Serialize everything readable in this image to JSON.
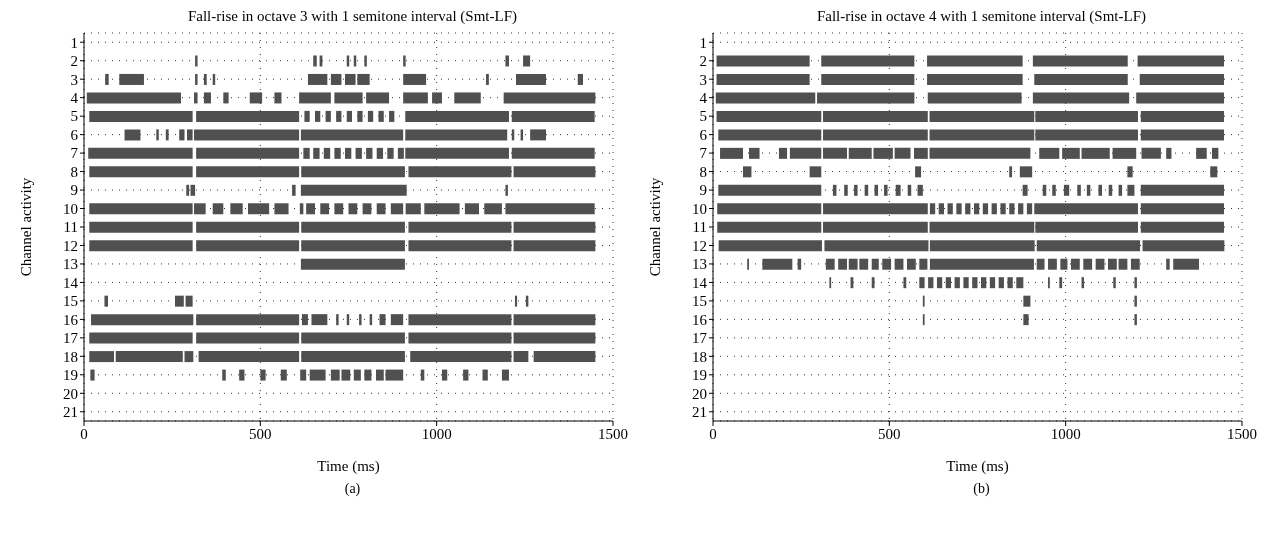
{
  "chart_data": [
    {
      "type": "bar",
      "orientation": "horizontal",
      "title": "Fall-rise in octave 3 with 1 semitone interval (Smt-LF)",
      "xlabel": "Time (ms)",
      "ylabel": "Channel activity",
      "annotations": [
        "(a)"
      ],
      "categories": [
        "1",
        "2",
        "3",
        "4",
        "5",
        "6",
        "7",
        "8",
        "9",
        "10",
        "11",
        "12",
        "13",
        "14",
        "15",
        "16",
        "17",
        "18",
        "19",
        "20",
        "21"
      ],
      "xlim": [
        0,
        1500
      ],
      "xticks": [
        0,
        500,
        1000,
        1500
      ],
      "grid": true,
      "color": "#505050",
      "series": [
        {
          "base": [
            null,
            315,
            60,
            8,
            15,
            115,
            12,
            15,
            290,
            15,
            15,
            15,
            615,
            null,
            58,
            20,
            15,
            15,
            18,
            null,
            null
          ],
          "values": [
            null,
            7,
            10,
            267,
            293,
            45,
            296,
            293,
            8,
            293,
            293,
            293,
            295,
            null,
            10,
            290,
            293,
            70,
            12,
            null,
            null
          ]
        },
        {
          "base": [
            null,
            650,
            100,
            312,
            318,
            205,
            318,
            318,
            302,
            312,
            318,
            318,
            null,
            null,
            258,
            318,
            318,
            90,
            392,
            null,
            null
          ],
          "values": [
            null,
            10,
            70,
            10,
            292,
            7,
            292,
            292,
            13,
            33,
            292,
            292,
            null,
            null,
            25,
            292,
            292,
            190,
            10,
            null,
            null
          ]
        },
        {
          "base": [
            null,
            668,
            315,
            340,
            625,
            232,
            622,
            616,
            590,
            365,
            616,
            616,
            null,
            null,
            288,
            618,
            616,
            285,
            440,
            null,
            null
          ],
          "values": [
            null,
            8,
            7,
            20,
            15,
            8,
            18,
            294,
            10,
            30,
            294,
            294,
            null,
            null,
            20,
            17,
            294,
            25,
            15,
            null,
            null
          ]
        },
        {
          "base": [
            null,
            745,
            340,
            395,
            655,
            270,
            650,
            920,
            615,
            415,
            920,
            920,
            null,
            null,
            1222,
            645,
            920,
            325,
            500,
            null,
            null
          ],
          "values": [
            null,
            7,
            8,
            15,
            15,
            15,
            18,
            292,
            300,
            35,
            292,
            292,
            null,
            null,
            6,
            45,
            292,
            285,
            15,
            null,
            null
          ]
        },
        {
          "base": [
            null,
            765,
            365,
            470,
            685,
            292,
            680,
            1218,
            1195,
            465,
            1218,
            1218,
            null,
            null,
            1253,
            715,
            1218,
            616,
            558,
            null,
            null
          ],
          "values": [
            null,
            7,
            7,
            35,
            15,
            16,
            18,
            232,
            7,
            60,
            232,
            232,
            null,
            null,
            7,
            7,
            232,
            294,
            17,
            null,
            null
          ]
        },
        {
          "base": [
            null,
            795,
            635,
            540,
            715,
            312,
            710,
            null,
            null,
            540,
            null,
            null,
            null,
            null,
            null,
            745,
            null,
            925,
            613,
            null,
            null
          ],
          "values": [
            null,
            7,
            55,
            20,
            15,
            298,
            18,
            null,
            null,
            40,
            null,
            null,
            null,
            null,
            null,
            7,
            null,
            287,
            17,
            null,
            null
          ]
        },
        {
          "base": [
            null,
            905,
            700,
            610,
            745,
            615,
            740,
            null,
            null,
            612,
            null,
            null,
            null,
            null,
            null,
            780,
            null,
            1218,
            640,
            null,
            null
          ],
          "values": [
            null,
            7,
            30,
            90,
            15,
            290,
            18,
            null,
            null,
            10,
            null,
            null,
            null,
            null,
            null,
            7,
            null,
            42,
            45,
            null,
            null
          ]
        },
        {
          "base": [
            null,
            1195,
            740,
            710,
            775,
            911,
            770,
            null,
            null,
            630,
            null,
            null,
            null,
            null,
            null,
            810,
            null,
            1275,
            700,
            null,
            null
          ],
          "values": [
            null,
            10,
            30,
            80,
            15,
            289,
            18,
            null,
            null,
            25,
            null,
            null,
            null,
            null,
            null,
            7,
            null,
            175,
            25,
            null,
            null
          ]
        },
        {
          "base": [
            null,
            1245,
            775,
            800,
            805,
            1213,
            800,
            null,
            null,
            670,
            null,
            null,
            null,
            null,
            null,
            838,
            null,
            null,
            730,
            null,
            null
          ],
          "values": [
            null,
            20,
            35,
            65,
            15,
            7,
            18,
            null,
            null,
            25,
            null,
            null,
            null,
            null,
            null,
            17,
            null,
            null,
            25,
            null,
            null
          ]
        },
        {
          "base": [
            null,
            null,
            905,
            905,
            835,
            1238,
            830,
            null,
            null,
            710,
            null,
            null,
            null,
            null,
            null,
            870,
            null,
            null,
            765,
            null,
            null
          ],
          "values": [
            null,
            null,
            65,
            70,
            15,
            7,
            18,
            null,
            null,
            25,
            null,
            null,
            null,
            null,
            null,
            35,
            null,
            null,
            20,
            null,
            null
          ]
        },
        {
          "base": [
            null,
            null,
            1140,
            987,
            865,
            1265,
            860,
            null,
            null,
            750,
            null,
            null,
            null,
            null,
            null,
            920,
            null,
            null,
            795,
            null,
            null
          ],
          "values": [
            null,
            null,
            8,
            28,
            15,
            45,
            18,
            null,
            null,
            25,
            null,
            null,
            null,
            null,
            null,
            292,
            null,
            null,
            20,
            null,
            null
          ]
        },
        {
          "base": [
            null,
            null,
            1225,
            1050,
            911,
            null,
            890,
            null,
            null,
            790,
            null,
            null,
            null,
            null,
            null,
            1218,
            null,
            null,
            828,
            null,
            null
          ],
          "values": [
            null,
            null,
            85,
            75,
            294,
            null,
            17,
            null,
            null,
            25,
            null,
            null,
            null,
            null,
            null,
            232,
            null,
            null,
            22,
            null,
            null
          ]
        },
        {
          "base": [
            null,
            null,
            1400,
            1190,
            1213,
            null,
            911,
            null,
            null,
            830,
            null,
            null,
            null,
            null,
            null,
            null,
            null,
            null,
            855,
            null,
            null
          ],
          "values": [
            null,
            null,
            15,
            260,
            235,
            null,
            294,
            null,
            null,
            25,
            null,
            null,
            null,
            null,
            null,
            null,
            null,
            null,
            50,
            null,
            null
          ]
        },
        {
          "base": [
            null,
            null,
            null,
            null,
            null,
            null,
            1213,
            null,
            null,
            870,
            null,
            null,
            null,
            null,
            null,
            null,
            null,
            null,
            955,
            null,
            null
          ],
          "values": [
            null,
            null,
            null,
            null,
            null,
            null,
            235,
            null,
            null,
            35,
            null,
            null,
            null,
            null,
            null,
            null,
            null,
            null,
            10,
            null,
            null
          ]
        },
        {
          "base": [
            null,
            null,
            null,
            null,
            null,
            null,
            null,
            null,
            null,
            912,
            null,
            null,
            null,
            null,
            null,
            null,
            null,
            null,
            1015,
            null,
            null
          ],
          "values": [
            null,
            null,
            null,
            null,
            null,
            null,
            null,
            null,
            null,
            43,
            null,
            null,
            null,
            null,
            null,
            null,
            null,
            null,
            15,
            null,
            null
          ]
        },
        {
          "base": [
            null,
            null,
            null,
            null,
            null,
            null,
            null,
            null,
            null,
            965,
            null,
            null,
            null,
            null,
            null,
            null,
            null,
            null,
            1075,
            null,
            null
          ],
          "values": [
            null,
            null,
            null,
            null,
            null,
            null,
            null,
            null,
            null,
            100,
            null,
            null,
            null,
            null,
            null,
            null,
            null,
            null,
            15,
            null,
            null
          ]
        },
        {
          "base": [
            null,
            null,
            null,
            null,
            null,
            null,
            null,
            null,
            null,
            1080,
            null,
            null,
            null,
            null,
            null,
            null,
            null,
            null,
            1130,
            null,
            null
          ],
          "values": [
            null,
            null,
            null,
            null,
            null,
            null,
            null,
            null,
            null,
            40,
            null,
            null,
            null,
            null,
            null,
            null,
            null,
            null,
            15,
            null,
            null
          ]
        },
        {
          "base": [
            null,
            null,
            null,
            null,
            null,
            null,
            null,
            null,
            null,
            1135,
            null,
            null,
            null,
            null,
            null,
            null,
            null,
            null,
            1185,
            null,
            null
          ],
          "values": [
            null,
            null,
            null,
            null,
            null,
            null,
            null,
            null,
            null,
            50,
            null,
            null,
            null,
            null,
            null,
            null,
            null,
            null,
            20,
            null,
            null
          ]
        },
        {
          "base": [
            null,
            null,
            null,
            null,
            null,
            null,
            null,
            null,
            null,
            1195,
            null,
            null,
            null,
            null,
            null,
            null,
            null,
            null,
            null,
            null,
            null
          ],
          "values": [
            null,
            null,
            null,
            null,
            null,
            null,
            null,
            null,
            null,
            253,
            null,
            null,
            null,
            null,
            null,
            null,
            null,
            null,
            null,
            null,
            null
          ]
        }
      ]
    },
    {
      "type": "bar",
      "orientation": "horizontal",
      "title": "Fall-rise in octave 4 with 1 semitone interval (Smt-LF)",
      "xlabel": "Time (ms)",
      "ylabel": "Channel activity",
      "annotations": [
        "(b)"
      ],
      "categories": [
        "1",
        "2",
        "3",
        "4",
        "5",
        "6",
        "7",
        "8",
        "9",
        "10",
        "11",
        "12",
        "13",
        "14",
        "15",
        "16",
        "17",
        "18",
        "19",
        "20",
        "21"
      ],
      "xlim": [
        0,
        1500
      ],
      "xticks": [
        0,
        500,
        1000,
        1500
      ],
      "grid": true,
      "color": "#505050",
      "series": [
        {
          "base": [
            null,
            10,
            10,
            8,
            10,
            15,
            20,
            85,
            15,
            12,
            12,
            16,
            97,
            330,
            595,
            595,
            null,
            null,
            null,
            null,
            null
          ],
          "values": [
            null,
            264,
            264,
            282,
            297,
            292,
            65,
            24,
            292,
            295,
            295,
            293,
            5,
            5,
            5,
            5,
            null,
            null,
            null,
            null,
            null
          ]
        },
        {
          "base": [
            null,
            307,
            307,
            295,
            312,
            312,
            102,
            274,
            340,
            312,
            312,
            316,
            140,
            390,
            880,
            880,
            null,
            null,
            null,
            null,
            null
          ],
          "values": [
            null,
            264,
            264,
            276,
            297,
            297,
            30,
            33,
            10,
            297,
            297,
            295,
            85,
            8,
            20,
            15,
            null,
            null,
            null,
            null,
            null
          ]
        },
        {
          "base": [
            null,
            607,
            607,
            609,
            614,
            614,
            187,
            573,
            372,
            615,
            614,
            615,
            240,
            450,
            1195,
            1195,
            null,
            null,
            null,
            null,
            null
          ],
          "values": [
            null,
            271,
            271,
            266,
            297,
            297,
            23,
            17,
            10,
            15,
            297,
            297,
            10,
            8,
            7,
            7,
            null,
            null,
            null,
            null,
            null
          ]
        },
        {
          "base": [
            null,
            907,
            911,
            907,
            914,
            914,
            218,
            840,
            400,
            640,
            914,
            918,
            320,
            540,
            null,
            null,
            null,
            null,
            null,
            null,
            null
          ],
          "values": [
            null,
            269,
            265,
            273,
            291,
            291,
            89,
            8,
            10,
            15,
            291,
            293,
            25,
            8,
            null,
            null,
            null,
            null,
            null,
            null,
            null
          ]
        },
        {
          "base": [
            null,
            1204,
            1210,
            1200,
            1213,
            1213,
            312,
            870,
            430,
            665,
            1213,
            1218,
            355,
            585,
            null,
            null,
            null,
            null,
            null,
            null,
            null
          ],
          "values": [
            null,
            245,
            239,
            249,
            236,
            236,
            68,
            35,
            10,
            15,
            236,
            232,
            25,
            15,
            null,
            null,
            null,
            null,
            null,
            null,
            null
          ]
        },
        {
          "base": [
            null,
            null,
            null,
            null,
            null,
            null,
            385,
            1175,
            458,
            690,
            null,
            null,
            385,
            610,
            null,
            null,
            null,
            null,
            null,
            null,
            null
          ],
          "values": [
            null,
            null,
            null,
            null,
            null,
            null,
            65,
            15,
            10,
            15,
            null,
            null,
            25,
            15,
            null,
            null,
            null,
            null,
            null,
            null,
            null
          ]
        },
        {
          "base": [
            null,
            null,
            null,
            null,
            null,
            null,
            455,
            1410,
            485,
            715,
            null,
            null,
            415,
            635,
            null,
            null,
            null,
            null,
            null,
            null,
            null
          ],
          "values": [
            null,
            null,
            null,
            null,
            null,
            null,
            55,
            20,
            10,
            15,
            null,
            null,
            25,
            15,
            null,
            null,
            null,
            null,
            null,
            null,
            null
          ]
        },
        {
          "base": [
            null,
            null,
            null,
            null,
            null,
            null,
            515,
            null,
            518,
            740,
            null,
            null,
            450,
            660,
            null,
            null,
            null,
            null,
            null,
            null,
            null
          ],
          "values": [
            null,
            null,
            null,
            null,
            null,
            null,
            45,
            null,
            14,
            15,
            null,
            null,
            20,
            15,
            null,
            null,
            null,
            null,
            null,
            null,
            null
          ]
        },
        {
          "base": [
            null,
            null,
            null,
            null,
            null,
            null,
            570,
            null,
            552,
            765,
            null,
            null,
            480,
            685,
            null,
            null,
            null,
            null,
            null,
            null,
            null
          ],
          "values": [
            null,
            null,
            null,
            null,
            null,
            null,
            39,
            null,
            10,
            15,
            null,
            null,
            25,
            15,
            null,
            null,
            null,
            null,
            null,
            null,
            null
          ]
        },
        {
          "base": [
            null,
            null,
            null,
            null,
            null,
            null,
            614,
            null,
            580,
            790,
            null,
            null,
            515,
            710,
            null,
            null,
            null,
            null,
            null,
            null,
            null
          ],
          "values": [
            null,
            null,
            null,
            null,
            null,
            null,
            286,
            null,
            15,
            15,
            null,
            null,
            25,
            15,
            null,
            null,
            null,
            null,
            null,
            null,
            null
          ]
        },
        {
          "base": [
            null,
            null,
            null,
            null,
            null,
            null,
            925,
            null,
            878,
            815,
            null,
            null,
            550,
            735,
            null,
            null,
            null,
            null,
            null,
            null,
            null
          ],
          "values": [
            null,
            null,
            null,
            null,
            null,
            null,
            57,
            null,
            14,
            15,
            null,
            null,
            25,
            15,
            null,
            null,
            null,
            null,
            null,
            null,
            null
          ]
        },
        {
          "base": [
            null,
            null,
            null,
            null,
            null,
            null,
            990,
            null,
            935,
            840,
            null,
            null,
            585,
            760,
            null,
            null,
            null,
            null,
            null,
            null,
            null
          ],
          "values": [
            null,
            null,
            null,
            null,
            null,
            null,
            50,
            null,
            10,
            15,
            null,
            null,
            23,
            15,
            null,
            null,
            null,
            null,
            null,
            null,
            null
          ]
        },
        {
          "base": [
            null,
            null,
            null,
            null,
            null,
            null,
            1045,
            null,
            962,
            865,
            null,
            null,
            615,
            785,
            null,
            null,
            null,
            null,
            null,
            null,
            null
          ],
          "values": [
            null,
            null,
            null,
            null,
            null,
            null,
            80,
            null,
            10,
            15,
            null,
            null,
            295,
            15,
            null,
            null,
            null,
            null,
            null,
            null,
            null
          ]
        },
        {
          "base": [
            null,
            null,
            null,
            null,
            null,
            null,
            1133,
            null,
            995,
            890,
            null,
            null,
            918,
            810,
            null,
            null,
            null,
            null,
            null,
            null,
            null
          ],
          "values": [
            null,
            null,
            null,
            null,
            null,
            null,
            67,
            null,
            15,
            15,
            null,
            null,
            22,
            15,
            null,
            null,
            null,
            null,
            null,
            null,
            null
          ]
        },
        {
          "base": [
            null,
            null,
            null,
            null,
            null,
            null,
            1215,
            null,
            1033,
            911,
            null,
            null,
            950,
            835,
            null,
            null,
            null,
            null,
            null,
            null,
            null
          ],
          "values": [
            null,
            null,
            null,
            null,
            null,
            null,
            55,
            null,
            10,
            294,
            null,
            null,
            25,
            15,
            null,
            null,
            null,
            null,
            null,
            null,
            null
          ]
        },
        {
          "base": [
            null,
            null,
            null,
            null,
            null,
            null,
            1285,
            null,
            1060,
            1213,
            null,
            null,
            985,
            860,
            null,
            null,
            null,
            null,
            null,
            null,
            null
          ],
          "values": [
            null,
            null,
            null,
            null,
            null,
            null,
            15,
            null,
            10,
            236,
            null,
            null,
            20,
            20,
            null,
            null,
            null,
            null,
            null,
            null,
            null
          ]
        },
        {
          "base": [
            null,
            null,
            null,
            null,
            null,
            null,
            1370,
            null,
            1093,
            null,
            null,
            null,
            1015,
            950,
            null,
            null,
            null,
            null,
            null,
            null,
            null
          ],
          "values": [
            null,
            null,
            null,
            null,
            null,
            null,
            30,
            null,
            10,
            null,
            null,
            null,
            25,
            5,
            null,
            null,
            null,
            null,
            null,
            null,
            null
          ]
        },
        {
          "base": [
            null,
            null,
            null,
            null,
            null,
            null,
            1415,
            null,
            1122,
            null,
            null,
            null,
            1050,
            982,
            null,
            null,
            null,
            null,
            null,
            null,
            null
          ],
          "values": [
            null,
            null,
            null,
            null,
            null,
            null,
            18,
            null,
            10,
            null,
            null,
            null,
            25,
            8,
            null,
            null,
            null,
            null,
            null,
            null,
            null
          ]
        },
        {
          "base": [
            null,
            null,
            null,
            null,
            null,
            null,
            null,
            null,
            1150,
            null,
            null,
            null,
            1085,
            1045,
            null,
            null,
            null,
            null,
            null,
            null,
            null
          ],
          "values": [
            null,
            null,
            null,
            null,
            null,
            null,
            null,
            null,
            10,
            null,
            null,
            null,
            25,
            7,
            null,
            null,
            null,
            null,
            null,
            null,
            null
          ]
        },
        {
          "base": [
            null,
            null,
            null,
            null,
            null,
            null,
            null,
            null,
            1175,
            null,
            null,
            null,
            1120,
            1135,
            null,
            null,
            null,
            null,
            null,
            null,
            null
          ],
          "values": [
            null,
            null,
            null,
            null,
            null,
            null,
            null,
            null,
            20,
            null,
            null,
            null,
            25,
            7,
            null,
            null,
            null,
            null,
            null,
            null,
            null
          ]
        },
        {
          "base": [
            null,
            null,
            null,
            null,
            null,
            null,
            null,
            null,
            1213,
            null,
            null,
            null,
            1150,
            1195,
            null,
            null,
            null,
            null,
            null,
            null,
            null
          ],
          "values": [
            null,
            null,
            null,
            null,
            null,
            null,
            null,
            null,
            236,
            null,
            null,
            null,
            25,
            7,
            null,
            null,
            null,
            null,
            null,
            null,
            null
          ]
        },
        {
          "base": [
            null,
            null,
            null,
            null,
            null,
            null,
            null,
            null,
            null,
            null,
            null,
            null,
            1185,
            null,
            null,
            null,
            null,
            null,
            null,
            null,
            null
          ],
          "values": [
            null,
            null,
            null,
            null,
            null,
            null,
            null,
            null,
            null,
            null,
            null,
            null,
            25,
            null,
            null,
            null,
            null,
            null,
            null,
            null,
            null
          ]
        },
        {
          "base": [
            null,
            null,
            null,
            null,
            null,
            null,
            null,
            null,
            null,
            null,
            null,
            null,
            1285,
            null,
            null,
            null,
            null,
            null,
            null,
            null,
            null
          ],
          "values": [
            null,
            null,
            null,
            null,
            null,
            null,
            null,
            null,
            null,
            null,
            null,
            null,
            10,
            null,
            null,
            null,
            null,
            null,
            null,
            null,
            null
          ]
        },
        {
          "base": [
            null,
            null,
            null,
            null,
            null,
            null,
            null,
            null,
            null,
            null,
            null,
            null,
            1305,
            null,
            null,
            null,
            null,
            null,
            null,
            null,
            null
          ],
          "values": [
            null,
            null,
            null,
            null,
            null,
            null,
            null,
            null,
            null,
            null,
            null,
            null,
            73,
            null,
            null,
            null,
            null,
            null,
            null,
            null,
            null
          ]
        }
      ]
    }
  ]
}
